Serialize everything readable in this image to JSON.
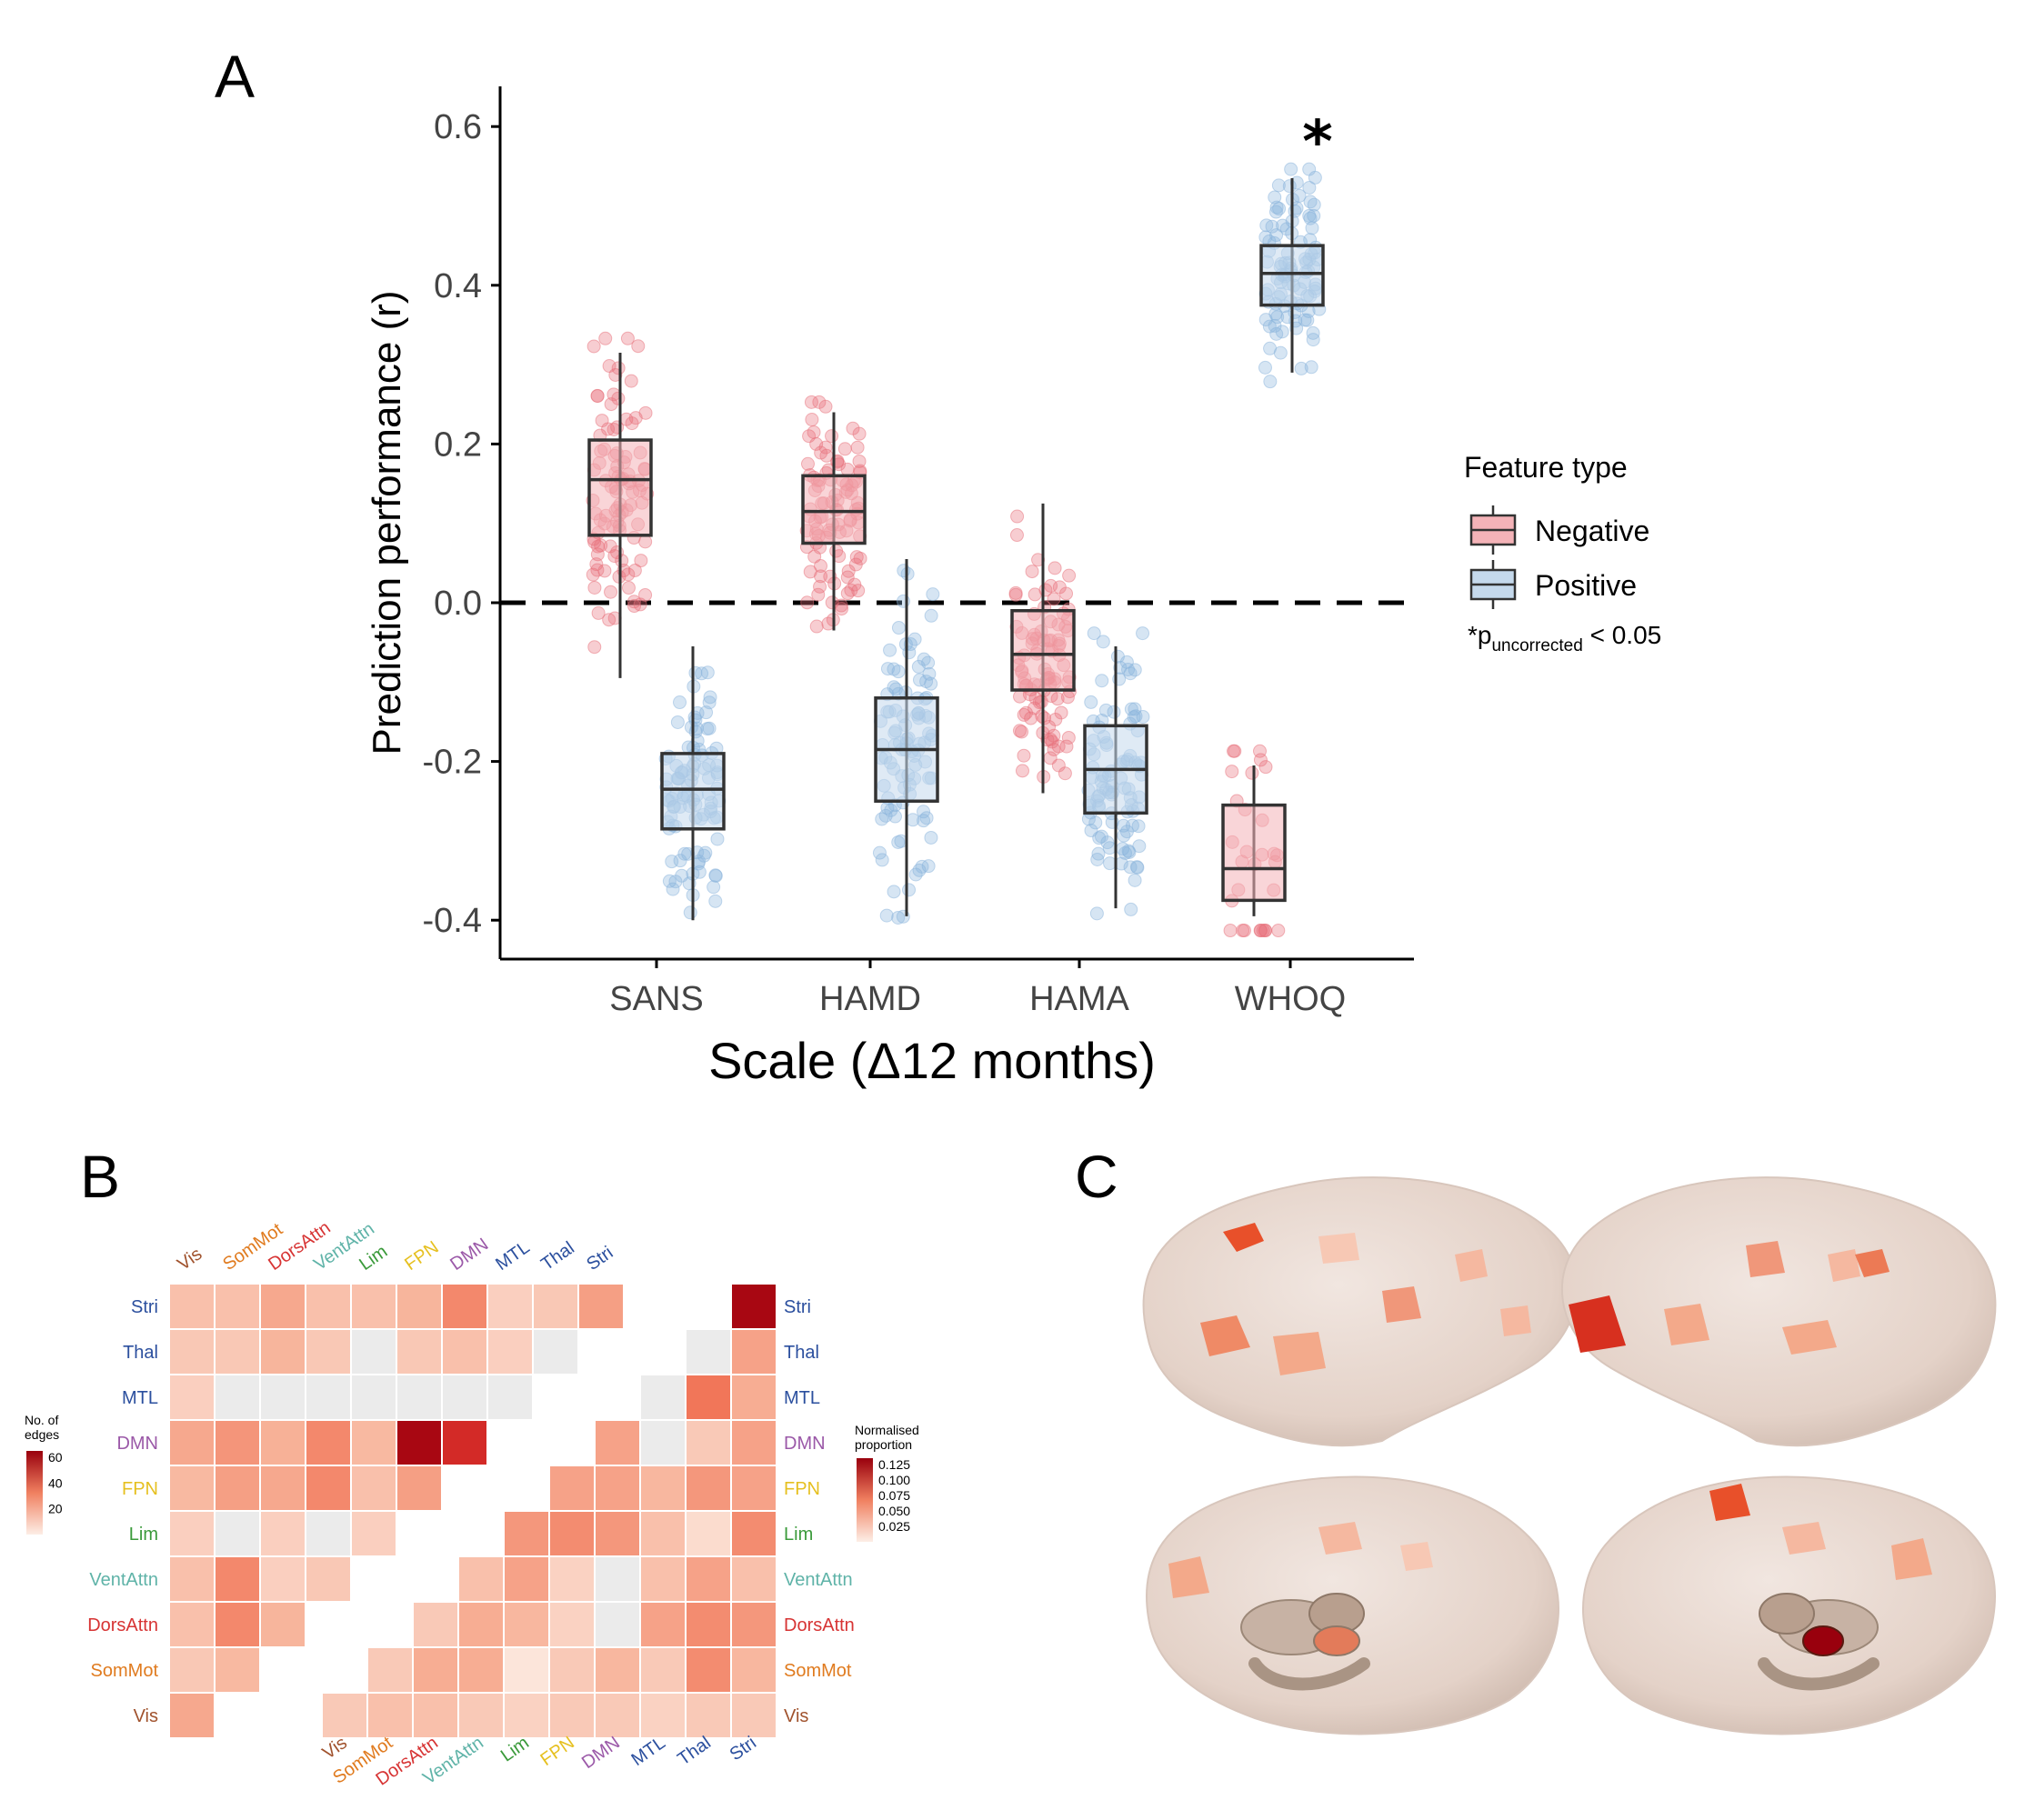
{
  "panel_labels": {
    "a": "A",
    "b": "B",
    "c": "C"
  },
  "colors": {
    "negative_point": "#e8707a",
    "negative_fill": "#f4b3b8",
    "positive_point": "#8ab4dc",
    "positive_fill": "#c5d9ec",
    "box_stroke": "#333333",
    "heat_low": "#fdeee6",
    "heat_high": "#99000d",
    "empty_cell": "#ebebeb"
  },
  "chart_data": [
    {
      "type": "box",
      "xlabel": "Scale (Δ12 months)",
      "ylabel": "Prediction performance (r)",
      "categories": [
        "SANS",
        "HAMD",
        "HAMA",
        "WHOQ"
      ],
      "ylim": [
        -0.45,
        0.65
      ],
      "yticks": [
        "0.6",
        "0.4",
        "0.2",
        "0.0",
        "-0.2",
        "-0.4"
      ],
      "ytick_values": [
        0.6,
        0.4,
        0.2,
        0.0,
        -0.2,
        -0.4
      ],
      "reference_line": 0.0,
      "legend": {
        "title": "Feature type",
        "placement": "right"
      },
      "significance_mark": "*",
      "significance_note": {
        "prefix": "*p",
        "subscript": "uncorrected",
        "suffix": " < 0.05"
      },
      "series": [
        {
          "name": "Negative",
          "boxes": [
            {
              "category": "SANS",
              "min": -0.095,
              "q1": 0.085,
              "median": 0.155,
              "q3": 0.205,
              "max": 0.315
            },
            {
              "category": "HAMD",
              "min": -0.035,
              "q1": 0.075,
              "median": 0.115,
              "q3": 0.16,
              "max": 0.24
            },
            {
              "category": "HAMA",
              "min": -0.24,
              "q1": -0.11,
              "median": -0.065,
              "q3": -0.01,
              "max": 0.125
            },
            {
              "category": "WHOQ",
              "min": -0.395,
              "q1": -0.375,
              "median": -0.335,
              "q3": -0.255,
              "max": -0.205
            }
          ]
        },
        {
          "name": "Positive",
          "boxes": [
            {
              "category": "SANS",
              "min": -0.4,
              "q1": -0.285,
              "median": -0.235,
              "q3": -0.19,
              "max": -0.055
            },
            {
              "category": "HAMD",
              "min": -0.395,
              "q1": -0.25,
              "median": -0.185,
              "q3": -0.12,
              "max": 0.055
            },
            {
              "category": "HAMA",
              "min": -0.385,
              "q1": -0.265,
              "median": -0.21,
              "q3": -0.155,
              "max": -0.055
            },
            {
              "category": "WHOQ",
              "min": 0.29,
              "q1": 0.375,
              "median": 0.415,
              "q3": 0.45,
              "max": 0.535
            }
          ]
        }
      ]
    },
    {
      "type": "heatmap",
      "networks": [
        "Vis",
        "SomMot",
        "DorsAttn",
        "VentAttn",
        "Lim",
        "FPN",
        "DMN",
        "MTL",
        "Thal",
        "Stri"
      ],
      "network_colors": [
        "#a0522d",
        "#e07b1f",
        "#d73434",
        "#5fb3a8",
        "#3a9a3a",
        "#e6c020",
        "#9b59a8",
        "#2b4f9e",
        "#2b4f9e",
        "#2b4f9e"
      ],
      "rows_top_to_bottom": [
        "Stri",
        "Thal",
        "MTL",
        "DMN",
        "FPN",
        "Lim",
        "VentAttn",
        "DorsAttn",
        "SomMot",
        "Vis"
      ],
      "left_colorbar": {
        "title_line1": "No. of",
        "title_line2": "edges",
        "ticks": [
          "60",
          "40",
          "20"
        ],
        "tick_values": [
          60,
          40,
          20
        ],
        "range": [
          0,
          65
        ]
      },
      "right_colorbar": {
        "title_line1": "Normalised",
        "title_line2": "proportion",
        "ticks": [
          "0.125",
          "0.100",
          "0.075",
          "0.050",
          "0.025"
        ],
        "tick_values": [
          0.125,
          0.1,
          0.075,
          0.05,
          0.025
        ],
        "range": [
          0,
          0.135
        ]
      },
      "left_triangle_edges": [
        [
          12,
          12,
          18,
          12,
          12,
          15,
          25,
          8,
          10,
          20
        ],
        [
          10,
          10,
          15,
          10,
          0,
          10,
          12,
          8,
          0
        ],
        [
          8,
          0,
          0,
          0,
          0,
          0,
          0,
          0
        ],
        [
          18,
          22,
          16,
          25,
          14,
          60,
          45
        ],
        [
          14,
          20,
          18,
          25,
          12,
          20
        ],
        [
          8,
          0,
          8,
          0,
          8
        ],
        [
          12,
          25,
          8,
          10
        ],
        [
          12,
          25,
          15
        ],
        [
          10,
          14
        ],
        [
          18
        ]
      ],
      "right_triangle_proportion": [
        [
          0.125
        ],
        [
          0,
          0.04
        ],
        [
          0,
          0.06,
          0.035
        ],
        [
          0.04,
          0,
          0.02,
          0.04
        ],
        [
          0.04,
          0.04,
          0.03,
          0.045,
          0.04
        ],
        [
          0.045,
          0.05,
          0.045,
          0.025,
          0.01,
          0.05
        ],
        [
          0.025,
          0.04,
          0.015,
          0,
          0.025,
          0.04,
          0.025
        ],
        [
          0.02,
          0.035,
          0.03,
          0.015,
          0,
          0.04,
          0.05,
          0.045
        ],
        [
          0.02,
          0.035,
          0.035,
          0.005,
          0.02,
          0.03,
          0.02,
          0.05,
          0.03
        ],
        [
          0.02,
          0.025,
          0.025,
          0.02,
          0.015,
          0.02,
          0.02,
          0.015,
          0.02,
          0.02
        ]
      ]
    }
  ]
}
